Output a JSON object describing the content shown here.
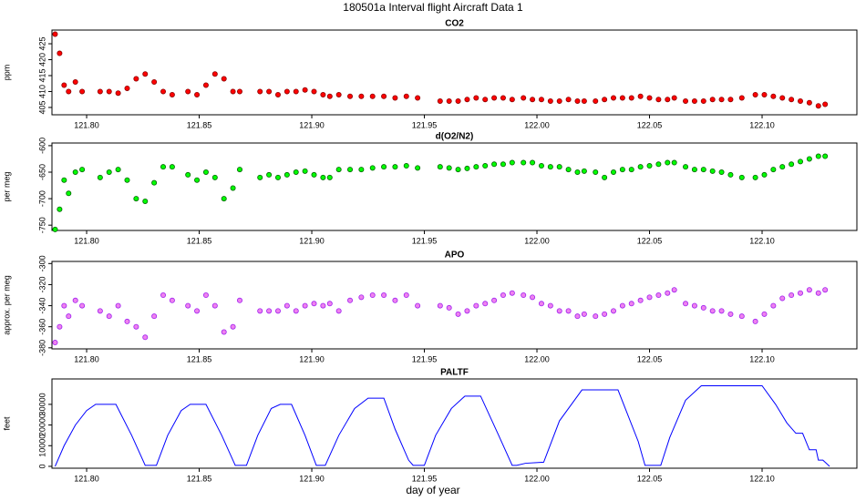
{
  "title": "180501a   Interval flight Aircraft Data 1",
  "xlabel": "day of year",
  "chart_data": [
    {
      "type": "scatter",
      "title": "CO2",
      "ylabel": "ppm",
      "color": "#ff0000",
      "edge_color": "#8b0000",
      "xlim": [
        121.7846,
        122.1421
      ],
      "xticks": [
        {
          "value": 121.8,
          "label": "121.80"
        },
        {
          "value": 121.85,
          "label": "121.85"
        },
        {
          "value": 121.9,
          "label": "121.90"
        },
        {
          "value": 121.95,
          "label": "121.95"
        },
        {
          "value": 122.0,
          "label": "122.00"
        },
        {
          "value": 122.05,
          "label": "122.05"
        },
        {
          "value": 122.1,
          "label": "122.10"
        }
      ],
      "ylim": [
        402.7,
        429.3
      ],
      "yticks": [
        405,
        410,
        415,
        420,
        425
      ],
      "x": [
        121.786,
        121.788,
        121.79,
        121.792,
        121.795,
        121.798,
        121.806,
        121.81,
        121.814,
        121.818,
        121.822,
        121.826,
        121.83,
        121.834,
        121.838,
        121.845,
        121.849,
        121.853,
        121.857,
        121.861,
        121.865,
        121.868,
        121.877,
        121.881,
        121.885,
        121.889,
        121.893,
        121.897,
        121.901,
        121.905,
        121.908,
        121.912,
        121.917,
        121.922,
        121.927,
        121.932,
        121.937,
        121.942,
        121.947,
        121.957,
        121.961,
        121.965,
        121.969,
        121.973,
        121.977,
        121.981,
        121.985,
        121.989,
        121.994,
        121.998,
        122.002,
        122.006,
        122.01,
        122.014,
        122.018,
        122.021,
        122.026,
        122.03,
        122.034,
        122.038,
        122.042,
        122.046,
        122.05,
        122.054,
        122.058,
        122.061,
        122.066,
        122.07,
        122.074,
        122.078,
        122.082,
        122.086,
        122.091,
        122.097,
        122.101,
        122.105,
        122.109,
        122.113,
        122.117,
        122.121,
        122.125,
        122.128
      ],
      "values": [
        428,
        422,
        412,
        410,
        413,
        410,
        410,
        410,
        409.5,
        411,
        414,
        415.5,
        413,
        410,
        409,
        410,
        409,
        412,
        415.5,
        414,
        410,
        410,
        410,
        410,
        409,
        410,
        410,
        410.5,
        410,
        409,
        408.5,
        409,
        408.5,
        408.5,
        408.5,
        408.5,
        408,
        408.5,
        408,
        407,
        407,
        407,
        407.5,
        408,
        407.5,
        408,
        408,
        407.5,
        408,
        407.5,
        407.5,
        407,
        407,
        407.5,
        407,
        407,
        407,
        407.5,
        408,
        408,
        408,
        408.5,
        408,
        407.5,
        407.5,
        408,
        407,
        407,
        407,
        407.5,
        407.5,
        407.5,
        408,
        409,
        409,
        408.5,
        408,
        407.5,
        407,
        406.5,
        405.5,
        406
      ]
    },
    {
      "type": "scatter",
      "title": "d(O2/N2)",
      "ylabel": "per meg",
      "color": "#00ff00",
      "edge_color": "#006400",
      "xlim": [
        121.7846,
        122.1421
      ],
      "xticks": [
        {
          "value": 121.8,
          "label": "121.80"
        },
        {
          "value": 121.85,
          "label": "121.85"
        },
        {
          "value": 121.9,
          "label": "121.90"
        },
        {
          "value": 121.95,
          "label": "121.95"
        },
        {
          "value": 122.0,
          "label": "122.00"
        },
        {
          "value": 122.05,
          "label": "122.05"
        },
        {
          "value": 122.1,
          "label": "122.10"
        }
      ],
      "ylim": [
        -760,
        -595
      ],
      "yticks": [
        -750,
        -700,
        -650,
        -600
      ],
      "x": [
        121.786,
        121.788,
        121.79,
        121.792,
        121.795,
        121.798,
        121.806,
        121.81,
        121.814,
        121.818,
        121.822,
        121.826,
        121.83,
        121.834,
        121.838,
        121.845,
        121.849,
        121.853,
        121.857,
        121.861,
        121.865,
        121.868,
        121.877,
        121.881,
        121.885,
        121.889,
        121.893,
        121.897,
        121.901,
        121.905,
        121.908,
        121.912,
        121.917,
        121.922,
        121.927,
        121.932,
        121.937,
        121.942,
        121.947,
        121.957,
        121.961,
        121.965,
        121.969,
        121.973,
        121.977,
        121.981,
        121.985,
        121.989,
        121.994,
        121.998,
        122.002,
        122.006,
        122.01,
        122.014,
        122.018,
        122.021,
        122.026,
        122.03,
        122.034,
        122.038,
        122.042,
        122.046,
        122.05,
        122.054,
        122.058,
        122.061,
        122.066,
        122.07,
        122.074,
        122.078,
        122.082,
        122.086,
        122.091,
        122.097,
        122.101,
        122.105,
        122.109,
        122.113,
        122.117,
        122.121,
        122.125,
        122.128
      ],
      "values": [
        -758,
        -720,
        -665,
        -690,
        -650,
        -645,
        -660,
        -650,
        -645,
        -665,
        -700,
        -705,
        -670,
        -640,
        -640,
        -655,
        -665,
        -650,
        -660,
        -700,
        -680,
        -645,
        -660,
        -655,
        -660,
        -655,
        -650,
        -648,
        -655,
        -660,
        -660,
        -645,
        -645,
        -645,
        -642,
        -640,
        -640,
        -638,
        -642,
        -640,
        -642,
        -645,
        -643,
        -640,
        -638,
        -635,
        -635,
        -632,
        -632,
        -632,
        -638,
        -640,
        -640,
        -645,
        -650,
        -648,
        -650,
        -660,
        -650,
        -645,
        -645,
        -640,
        -638,
        -635,
        -632,
        -632,
        -640,
        -645,
        -645,
        -648,
        -650,
        -655,
        -660,
        -660,
        -655,
        -645,
        -640,
        -635,
        -630,
        -625,
        -620,
        -620
      ]
    },
    {
      "type": "scatter",
      "title": "APO",
      "ylabel": "approx. per meg",
      "color": "#ee82ee",
      "edge_color": "#a020f0",
      "xlim": [
        121.7846,
        122.1421
      ],
      "xticks": [
        {
          "value": 121.8,
          "label": "121.80"
        },
        {
          "value": 121.85,
          "label": "121.85"
        },
        {
          "value": 121.9,
          "label": "121.90"
        },
        {
          "value": 121.95,
          "label": "121.95"
        },
        {
          "value": 122.0,
          "label": "122.00"
        },
        {
          "value": 122.05,
          "label": "122.05"
        },
        {
          "value": 122.1,
          "label": "122.10"
        }
      ],
      "ylim": [
        -381,
        -298
      ],
      "yticks": [
        -380,
        -360,
        -340,
        -320,
        -300
      ],
      "x": [
        121.786,
        121.788,
        121.79,
        121.792,
        121.795,
        121.798,
        121.806,
        121.81,
        121.814,
        121.818,
        121.822,
        121.826,
        121.83,
        121.834,
        121.838,
        121.845,
        121.849,
        121.853,
        121.857,
        121.861,
        121.865,
        121.868,
        121.877,
        121.881,
        121.885,
        121.889,
        121.893,
        121.897,
        121.901,
        121.905,
        121.908,
        121.912,
        121.917,
        121.922,
        121.927,
        121.932,
        121.937,
        121.942,
        121.947,
        121.957,
        121.961,
        121.965,
        121.969,
        121.973,
        121.977,
        121.981,
        121.985,
        121.989,
        121.994,
        121.998,
        122.002,
        122.006,
        122.01,
        122.014,
        122.018,
        122.021,
        122.026,
        122.03,
        122.034,
        122.038,
        122.042,
        122.046,
        122.05,
        122.054,
        122.058,
        122.061,
        122.066,
        122.07,
        122.074,
        122.078,
        122.082,
        122.086,
        122.091,
        122.097,
        122.101,
        122.105,
        122.109,
        122.113,
        122.117,
        122.121,
        122.125,
        122.128
      ],
      "values": [
        -375,
        -360,
        -340,
        -350,
        -335,
        -340,
        -345,
        -350,
        -340,
        -355,
        -360,
        -370,
        -350,
        -330,
        -335,
        -340,
        -345,
        -330,
        -340,
        -365,
        -360,
        -335,
        -345,
        -345,
        -345,
        -340,
        -345,
        -340,
        -338,
        -340,
        -338,
        -345,
        -335,
        -332,
        -330,
        -330,
        -335,
        -330,
        -340,
        -340,
        -342,
        -348,
        -345,
        -340,
        -338,
        -335,
        -330,
        -328,
        -330,
        -332,
        -338,
        -340,
        -345,
        -345,
        -350,
        -348,
        -350,
        -348,
        -345,
        -340,
        -338,
        -335,
        -332,
        -330,
        -328,
        -325,
        -338,
        -340,
        -342,
        -345,
        -345,
        -348,
        -350,
        -355,
        -348,
        -340,
        -333,
        -330,
        -328,
        -325,
        -328,
        -325
      ]
    },
    {
      "type": "line",
      "title": "PALTF",
      "ylabel": "feet",
      "color": "#0000ff",
      "xlim": [
        121.7846,
        122.1421
      ],
      "xticks": [
        {
          "value": 121.8,
          "label": "121.80"
        },
        {
          "value": 121.85,
          "label": "121.85"
        },
        {
          "value": 121.9,
          "label": "121.90"
        },
        {
          "value": 121.95,
          "label": "121.95"
        },
        {
          "value": 122.0,
          "label": "122.00"
        },
        {
          "value": 122.05,
          "label": "122.05"
        },
        {
          "value": 122.1,
          "label": "122.10"
        }
      ],
      "ylim": [
        -900,
        42300
      ],
      "yticks": [
        0,
        10000,
        20000,
        30000
      ],
      "x": [
        121.786,
        121.79,
        121.795,
        121.8,
        121.804,
        121.813,
        121.82,
        121.826,
        121.831,
        121.836,
        121.842,
        121.846,
        121.853,
        121.86,
        121.866,
        121.871,
        121.876,
        121.882,
        121.886,
        121.891,
        121.897,
        121.902,
        121.906,
        121.912,
        121.919,
        121.925,
        121.932,
        121.937,
        121.943,
        121.945,
        121.95,
        121.955,
        121.962,
        121.968,
        121.975,
        121.983,
        121.989,
        121.991,
        121.995,
        122.003,
        122.01,
        122.02,
        122.036,
        122.045,
        122.048,
        122.055,
        122.059,
        122.066,
        122.073,
        122.1,
        122.106,
        122.111,
        122.115,
        122.118,
        122.121,
        122.124,
        122.125,
        122.127,
        122.13
      ],
      "values": [
        0,
        10000,
        20000,
        27000,
        30000,
        30000,
        15000,
        500,
        500,
        15000,
        27000,
        30000,
        30000,
        15000,
        500,
        500,
        15000,
        28000,
        30000,
        30000,
        15000,
        500,
        500,
        15000,
        28000,
        33000,
        33000,
        18000,
        3000,
        500,
        500,
        15000,
        28000,
        34000,
        34000,
        15000,
        500,
        500,
        1500,
        2000,
        22000,
        37000,
        37000,
        12000,
        500,
        500,
        14000,
        32000,
        39000,
        39000,
        30000,
        21000,
        16000,
        16000,
        8000,
        8000,
        3000,
        3000,
        0
      ]
    }
  ]
}
